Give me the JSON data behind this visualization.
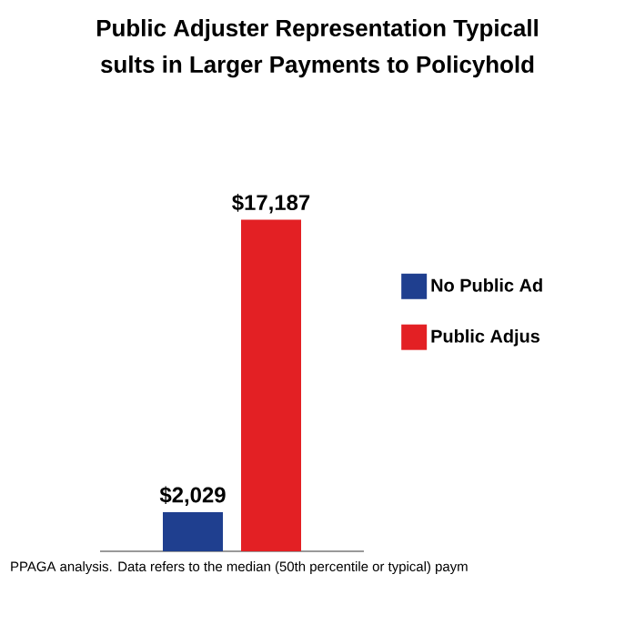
{
  "chart_data": {
    "type": "bar",
    "title": "Public Adjuster Representation Typicall",
    "subtitle": "sults in Larger Payments to Policyhold",
    "categories": [
      null
    ],
    "series": [
      {
        "name": "No Public Ad",
        "color": "#1f3f8f",
        "values": [
          2029
        ],
        "value_labels": [
          "$2,029"
        ]
      },
      {
        "name": "Public Adjus",
        "color": "#e32024",
        "values": [
          17187
        ],
        "value_labels": [
          "$17,187"
        ]
      }
    ],
    "data_labels": true,
    "legend": "right",
    "annotations": [
      "PPAGA analysis. Data refers to the median (50th percentile or typical) paym"
    ]
  }
}
